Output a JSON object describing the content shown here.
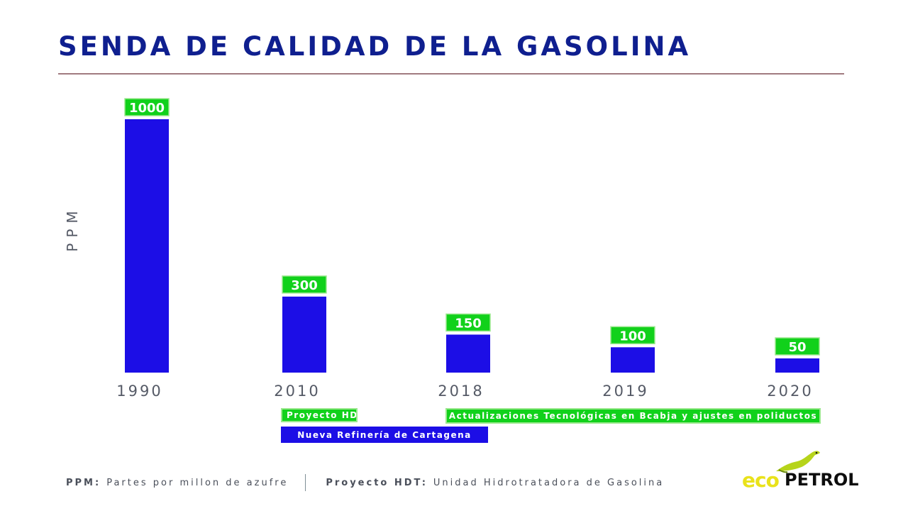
{
  "header": {
    "title": "SENDA DE CALIDAD DE LA GASOLINA"
  },
  "chart_data": {
    "type": "bar",
    "title": "SENDA DE CALIDAD DE LA GASOLINA",
    "ylabel": "PPM",
    "xlabel": "",
    "categories": [
      "1990",
      "2010",
      "2018",
      "2019",
      "2020"
    ],
    "values": [
      1000,
      300,
      150,
      100,
      50
    ],
    "data_labels": [
      "1000",
      "300",
      "150",
      "100",
      "50"
    ],
    "ylim": [
      0,
      1000
    ],
    "grid": false,
    "bar_color": "#1c0ee6",
    "label_bg_color": "#11d11b"
  },
  "timeline": {
    "items": [
      {
        "label": "Proyecto HDT",
        "color": "green",
        "start_year": "2010",
        "end_year": "2010"
      },
      {
        "label": "Nueva Refinería de Cartagena",
        "color": "blue",
        "start_year": "2010",
        "end_year": "2018"
      },
      {
        "label": "Actualizaciones Tecnológicas en Bcabja y ajustes en poliductos",
        "color": "green",
        "start_year": "2018",
        "end_year": "2020"
      }
    ]
  },
  "footer": {
    "ppm_key": "PPM:",
    "ppm_text": "Partes por millon de azufre",
    "hdt_key": "Proyecto HDT:",
    "hdt_text": "Unidad Hidrotratadora de Gasolina"
  },
  "logo": {
    "brand_eco": "eco",
    "brand_petrol": "PETROL",
    "accent": "#e9e21b"
  },
  "colors": {
    "title": "#0f1f8f",
    "rule": "#a07a80",
    "green": "#11d11b",
    "blue": "#1c0ee6"
  }
}
